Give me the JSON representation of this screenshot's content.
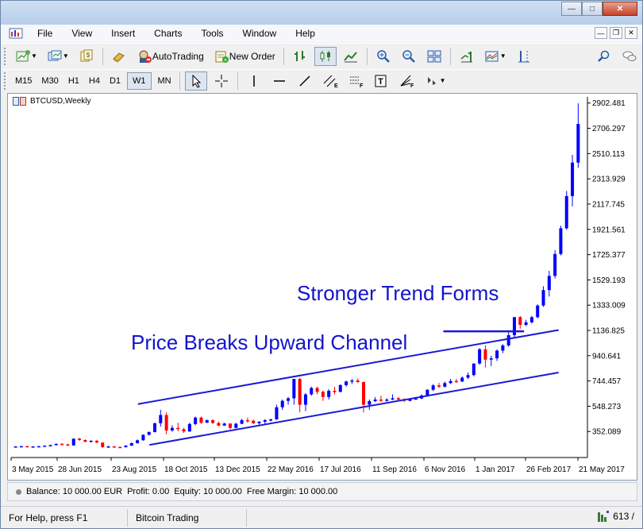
{
  "menu": {
    "items": [
      "File",
      "View",
      "Insert",
      "Charts",
      "Tools",
      "Window",
      "Help"
    ]
  },
  "toolbar": {
    "autotrading_label": "AutoTrading",
    "new_order_label": "New Order"
  },
  "timeframes": [
    "M15",
    "M30",
    "H1",
    "H4",
    "D1",
    "W1",
    "MN"
  ],
  "active_timeframe": "W1",
  "chart": {
    "title": "BTCUSD,Weekly",
    "annotation_trend": "Stronger Trend Forms",
    "annotation_breakout": "Price Breaks Upward Channel",
    "annotation_color": "#1414cc"
  },
  "chart_data": {
    "type": "candlestick",
    "title": "BTCUSD,Weekly",
    "y_ticks": [
      "2902.481",
      "2706.297",
      "2510.113",
      "2313.929",
      "2117.745",
      "1921.561",
      "1725.377",
      "1529.193",
      "1333.009",
      "1136.825",
      "940.641",
      "744.457",
      "548.273",
      "352.089"
    ],
    "y_tick_values": [
      2902.481,
      2706.297,
      2510.113,
      2313.929,
      2117.745,
      1921.561,
      1725.377,
      1529.193,
      1333.009,
      1136.825,
      940.641,
      744.457,
      548.273,
      352.089
    ],
    "x_ticks": [
      "3 May 2015",
      "28 Jun 2015",
      "23 Aug 2015",
      "18 Oct 2015",
      "13 Dec 2015",
      "22 May 2016",
      "17 Jul 2016",
      "11 Sep 2016",
      "6 Nov 2016",
      "1 Jan 2017",
      "26 Feb 2017",
      "21 May 2017"
    ],
    "ylim": [
      150,
      2950
    ],
    "up_color": "#0000ff",
    "down_color": "#ff0000",
    "channel_color": "#1a1ad6",
    "candles": [
      [
        236,
        238,
        233,
        236
      ],
      [
        236,
        240,
        234,
        238
      ],
      [
        238,
        240,
        232,
        234
      ],
      [
        234,
        238,
        230,
        236
      ],
      [
        236,
        240,
        234,
        238
      ],
      [
        238,
        244,
        236,
        242
      ],
      [
        242,
        250,
        238,
        246
      ],
      [
        246,
        258,
        244,
        256
      ],
      [
        256,
        262,
        248,
        252
      ],
      [
        252,
        256,
        240,
        244
      ],
      [
        244,
        300,
        242,
        296
      ],
      [
        296,
        304,
        280,
        286
      ],
      [
        286,
        290,
        268,
        272
      ],
      [
        272,
        284,
        268,
        280
      ],
      [
        280,
        286,
        262,
        266
      ],
      [
        266,
        268,
        226,
        230
      ],
      [
        230,
        240,
        226,
        236
      ],
      [
        236,
        240,
        228,
        232
      ],
      [
        232,
        236,
        224,
        230
      ],
      [
        230,
        246,
        228,
        242
      ],
      [
        242,
        266,
        240,
        262
      ],
      [
        262,
        290,
        258,
        284
      ],
      [
        284,
        330,
        280,
        326
      ],
      [
        326,
        352,
        322,
        348
      ],
      [
        348,
        420,
        344,
        416
      ],
      [
        416,
        520,
        390,
        480
      ],
      [
        480,
        500,
        330,
        360
      ],
      [
        360,
        400,
        350,
        380
      ],
      [
        380,
        420,
        354,
        370
      ],
      [
        370,
        380,
        340,
        352
      ],
      [
        352,
        420,
        350,
        410
      ],
      [
        410,
        468,
        400,
        460
      ],
      [
        460,
        468,
        410,
        420
      ],
      [
        420,
        445,
        418,
        440
      ],
      [
        440,
        446,
        412,
        418
      ],
      [
        418,
        430,
        392,
        398
      ],
      [
        398,
        420,
        396,
        414
      ],
      [
        414,
        416,
        370,
        380
      ],
      [
        380,
        420,
        376,
        412
      ],
      [
        412,
        450,
        408,
        440
      ],
      [
        440,
        460,
        420,
        436
      ],
      [
        436,
        444,
        410,
        416
      ],
      [
        416,
        432,
        400,
        428
      ],
      [
        428,
        448,
        412,
        440
      ],
      [
        440,
        452,
        430,
        446
      ],
      [
        446,
        560,
        442,
        540
      ],
      [
        540,
        600,
        520,
        590
      ],
      [
        590,
        620,
        560,
        610
      ],
      [
        610,
        760,
        560,
        760
      ],
      [
        760,
        768,
        500,
        560
      ],
      [
        560,
        650,
        510,
        640
      ],
      [
        640,
        700,
        630,
        690
      ],
      [
        690,
        700,
        640,
        660
      ],
      [
        660,
        670,
        590,
        620
      ],
      [
        620,
        680,
        600,
        668
      ],
      [
        668,
        700,
        640,
        660
      ],
      [
        660,
        720,
        656,
        712
      ],
      [
        712,
        748,
        700,
        740
      ],
      [
        740,
        760,
        720,
        748
      ],
      [
        748,
        764,
        728,
        736
      ],
      [
        736,
        740,
        500,
        560
      ],
      [
        560,
        600,
        520,
        588
      ],
      [
        588,
        620,
        580,
        600
      ],
      [
        600,
        630,
        580,
        596
      ],
      [
        596,
        610,
        584,
        600
      ],
      [
        600,
        640,
        596,
        610
      ],
      [
        610,
        620,
        590,
        600
      ],
      [
        600,
        610,
        580,
        590
      ],
      [
        590,
        610,
        586,
        606
      ],
      [
        606,
        620,
        600,
        608
      ],
      [
        608,
        640,
        604,
        632
      ],
      [
        632,
        680,
        622,
        676
      ],
      [
        676,
        720,
        666,
        710
      ],
      [
        710,
        730,
        690,
        700
      ],
      [
        700,
        740,
        694,
        728
      ],
      [
        728,
        760,
        720,
        744
      ],
      [
        744,
        760,
        730,
        740
      ],
      [
        740,
        780,
        736,
        770
      ],
      [
        770,
        810,
        760,
        790
      ],
      [
        790,
        880,
        780,
        880
      ],
      [
        880,
        1000,
        870,
        990
      ],
      [
        990,
        1020,
        850,
        910
      ],
      [
        910,
        940,
        860,
        920
      ],
      [
        920,
        990,
        900,
        980
      ],
      [
        980,
        1030,
        960,
        1020
      ],
      [
        1020,
        1130,
        1010,
        1100
      ],
      [
        1100,
        1240,
        1080,
        1240
      ],
      [
        1240,
        1250,
        1150,
        1180
      ],
      [
        1180,
        1220,
        1170,
        1200
      ],
      [
        1200,
        1250,
        1190,
        1240
      ],
      [
        1240,
        1340,
        1230,
        1330
      ],
      [
        1330,
        1480,
        1320,
        1450
      ],
      [
        1450,
        1600,
        1400,
        1560
      ],
      [
        1560,
        1760,
        1540,
        1730
      ],
      [
        1730,
        1950,
        1720,
        1930
      ],
      [
        1930,
        2220,
        1920,
        2180
      ],
      [
        2180,
        2500,
        2100,
        2440
      ],
      [
        2440,
        2900,
        2400,
        2740
      ]
    ],
    "channel_upper": [
      [
        0.22,
        565
      ],
      [
        0.95,
        1140
      ]
    ],
    "channel_lower": [
      [
        0.24,
        248
      ],
      [
        0.95,
        810
      ]
    ],
    "breakout_marker": [
      [
        0.75,
        1130
      ],
      [
        0.89,
        1130
      ]
    ]
  },
  "account": {
    "balance_text": "Balance: 10 000.00 EUR",
    "profit_text": "Profit: 0.00",
    "equity_text": "Equity: 10 000.00",
    "free_margin_text": "Free Margin: 10 000.00"
  },
  "status": {
    "help_text": "For Help, press F1",
    "profile": "Bitcoin Trading",
    "traffic": "613 /"
  }
}
